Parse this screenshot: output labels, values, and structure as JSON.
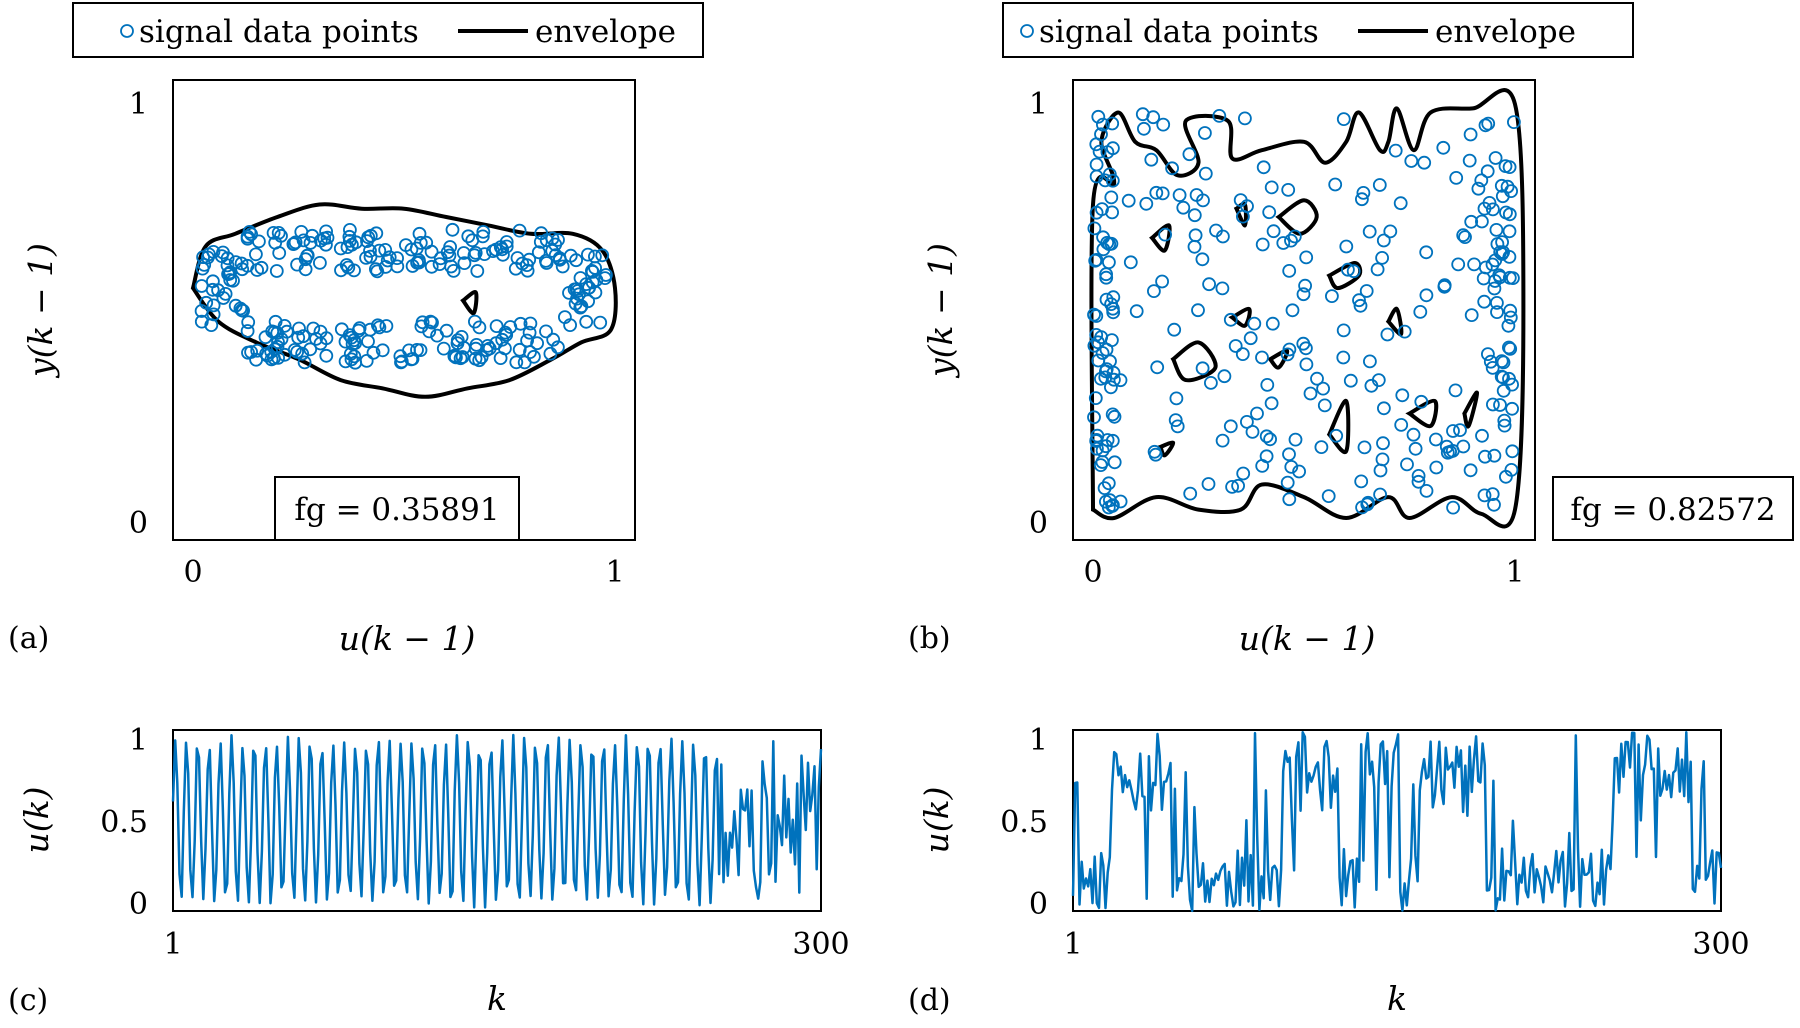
{
  "chart_data": [
    {
      "panel_label": "(a)",
      "type": "scatter",
      "xlabel": "u(k − 1)",
      "ylabel": "y(k − 1)",
      "xlim": [
        0,
        1
      ],
      "ylim": [
        0,
        1
      ],
      "xticks": [
        "0",
        "1"
      ],
      "yticks": [
        "0",
        "1"
      ],
      "legend": {
        "placement": "top",
        "entries": [
          "signal data points",
          "envelope"
        ]
      },
      "annotation": "fg = 0.35891",
      "series_color": "#0072BD",
      "points_description": "band-shaped cloud of ~300 points concentrated near y≈0.6–0.7 and y≈0.4–0.45, denser near u≈0.1 and u≈0.95",
      "envelope_outer": [
        [
          0.0,
          0.55
        ],
        [
          0.03,
          0.65
        ],
        [
          0.1,
          0.68
        ],
        [
          0.2,
          0.72
        ],
        [
          0.3,
          0.75
        ],
        [
          0.4,
          0.74
        ],
        [
          0.5,
          0.74
        ],
        [
          0.6,
          0.72
        ],
        [
          0.7,
          0.7
        ],
        [
          0.8,
          0.68
        ],
        [
          0.9,
          0.68
        ],
        [
          0.97,
          0.64
        ],
        [
          1.0,
          0.55
        ],
        [
          0.99,
          0.45
        ],
        [
          0.92,
          0.42
        ],
        [
          0.85,
          0.38
        ],
        [
          0.75,
          0.33
        ],
        [
          0.65,
          0.31
        ],
        [
          0.55,
          0.29
        ],
        [
          0.45,
          0.31
        ],
        [
          0.35,
          0.33
        ],
        [
          0.25,
          0.38
        ],
        [
          0.15,
          0.42
        ],
        [
          0.06,
          0.47
        ],
        [
          0.0,
          0.55
        ]
      ],
      "envelope_holes": [
        [
          [
            0.64,
            0.52
          ],
          [
            0.67,
            0.54
          ],
          [
            0.665,
            0.49
          ],
          [
            0.64,
            0.52
          ]
        ]
      ]
    },
    {
      "panel_label": "(b)",
      "type": "scatter",
      "xlabel": "u(k − 1)",
      "ylabel": "y(k − 1)",
      "xlim": [
        0,
        1
      ],
      "ylim": [
        0,
        1
      ],
      "xticks": [
        "0",
        "1"
      ],
      "yticks": [
        "0",
        "1"
      ],
      "legend": {
        "placement": "top",
        "entries": [
          "signal data points",
          "envelope"
        ]
      },
      "annotation": "fg = 0.82572",
      "series_color": "#0072BD",
      "points_description": "~300 points spread over the full unit square, dense near u≈0 and u≈1",
      "envelope_outer": [
        [
          0.0,
          0.02
        ],
        [
          0.0,
          0.75
        ],
        [
          0.05,
          0.8
        ],
        [
          0.02,
          0.9
        ],
        [
          0.06,
          0.97
        ],
        [
          0.1,
          0.9
        ],
        [
          0.15,
          0.88
        ],
        [
          0.2,
          0.82
        ],
        [
          0.25,
          0.85
        ],
        [
          0.22,
          0.95
        ],
        [
          0.32,
          0.95
        ],
        [
          0.33,
          0.86
        ],
        [
          0.4,
          0.88
        ],
        [
          0.5,
          0.9
        ],
        [
          0.55,
          0.85
        ],
        [
          0.6,
          0.9
        ],
        [
          0.63,
          0.97
        ],
        [
          0.68,
          0.88
        ],
        [
          0.7,
          0.9
        ],
        [
          0.72,
          0.98
        ],
        [
          0.76,
          0.88
        ],
        [
          0.8,
          0.97
        ],
        [
          0.9,
          0.98
        ],
        [
          1.0,
          0.99
        ],
        [
          1.02,
          0.5
        ],
        [
          1.0,
          0.02
        ],
        [
          0.92,
          0.01
        ],
        [
          0.85,
          0.05
        ],
        [
          0.75,
          0.0
        ],
        [
          0.7,
          0.05
        ],
        [
          0.6,
          0.0
        ],
        [
          0.5,
          0.05
        ],
        [
          0.4,
          0.08
        ],
        [
          0.35,
          0.02
        ],
        [
          0.25,
          0.02
        ],
        [
          0.15,
          0.05
        ],
        [
          0.05,
          0.0
        ],
        [
          0.0,
          0.02
        ]
      ],
      "envelope_holes": [
        [
          [
            0.44,
            0.72
          ],
          [
            0.5,
            0.76
          ],
          [
            0.53,
            0.72
          ],
          [
            0.49,
            0.68
          ],
          [
            0.44,
            0.72
          ]
        ],
        [
          [
            0.34,
            0.74
          ],
          [
            0.36,
            0.75
          ],
          [
            0.36,
            0.7
          ],
          [
            0.34,
            0.74
          ]
        ],
        [
          [
            0.14,
            0.67
          ],
          [
            0.18,
            0.7
          ],
          [
            0.17,
            0.64
          ],
          [
            0.14,
            0.67
          ]
        ],
        [
          [
            0.56,
            0.58
          ],
          [
            0.62,
            0.61
          ],
          [
            0.63,
            0.58
          ],
          [
            0.58,
            0.55
          ],
          [
            0.56,
            0.58
          ]
        ],
        [
          [
            0.33,
            0.48
          ],
          [
            0.37,
            0.5
          ],
          [
            0.36,
            0.46
          ],
          [
            0.33,
            0.48
          ]
        ],
        [
          [
            0.7,
            0.47
          ],
          [
            0.72,
            0.5
          ],
          [
            0.73,
            0.44
          ],
          [
            0.7,
            0.47
          ]
        ],
        [
          [
            0.19,
            0.38
          ],
          [
            0.25,
            0.42
          ],
          [
            0.29,
            0.36
          ],
          [
            0.22,
            0.33
          ],
          [
            0.19,
            0.38
          ]
        ],
        [
          [
            0.42,
            0.38
          ],
          [
            0.46,
            0.4
          ],
          [
            0.44,
            0.36
          ],
          [
            0.42,
            0.38
          ]
        ],
        [
          [
            0.56,
            0.2
          ],
          [
            0.6,
            0.28
          ],
          [
            0.6,
            0.16
          ],
          [
            0.56,
            0.2
          ]
        ],
        [
          [
            0.75,
            0.25
          ],
          [
            0.81,
            0.28
          ],
          [
            0.8,
            0.22
          ],
          [
            0.75,
            0.25
          ]
        ],
        [
          [
            0.88,
            0.25
          ],
          [
            0.91,
            0.3
          ],
          [
            0.89,
            0.22
          ],
          [
            0.88,
            0.25
          ]
        ],
        [
          [
            0.16,
            0.17
          ],
          [
            0.19,
            0.18
          ],
          [
            0.17,
            0.15
          ],
          [
            0.16,
            0.17
          ]
        ]
      ]
    },
    {
      "panel_label": "(c)",
      "type": "line",
      "xlabel": "k",
      "ylabel": "u(k)",
      "xlim": [
        1,
        300
      ],
      "ylim": [
        0,
        1
      ],
      "xticks": [
        "1",
        "300"
      ],
      "yticks": [
        "0",
        "0.5",
        "1"
      ],
      "series_color": "#0072BD",
      "description": "regular oscillation between ~0.05 and ~0.95 with roughly 4–6 samples per period; amplitude slightly decreasing and becoming irregular after k≈250"
    },
    {
      "panel_label": "(d)",
      "type": "line",
      "xlabel": "k",
      "ylabel": "u(k)",
      "xlim": [
        1,
        300
      ],
      "ylim": [
        0,
        1
      ],
      "xticks": [
        "1",
        "300"
      ],
      "yticks": [
        "0",
        "0.5",
        "1"
      ],
      "series_color": "#0072BD",
      "description": "random switching signal with segments of high values (~0.8–1) near k≈20–40, 100–120, 150–180, 260–290 and low values (~0–0.2) elsewhere"
    }
  ]
}
